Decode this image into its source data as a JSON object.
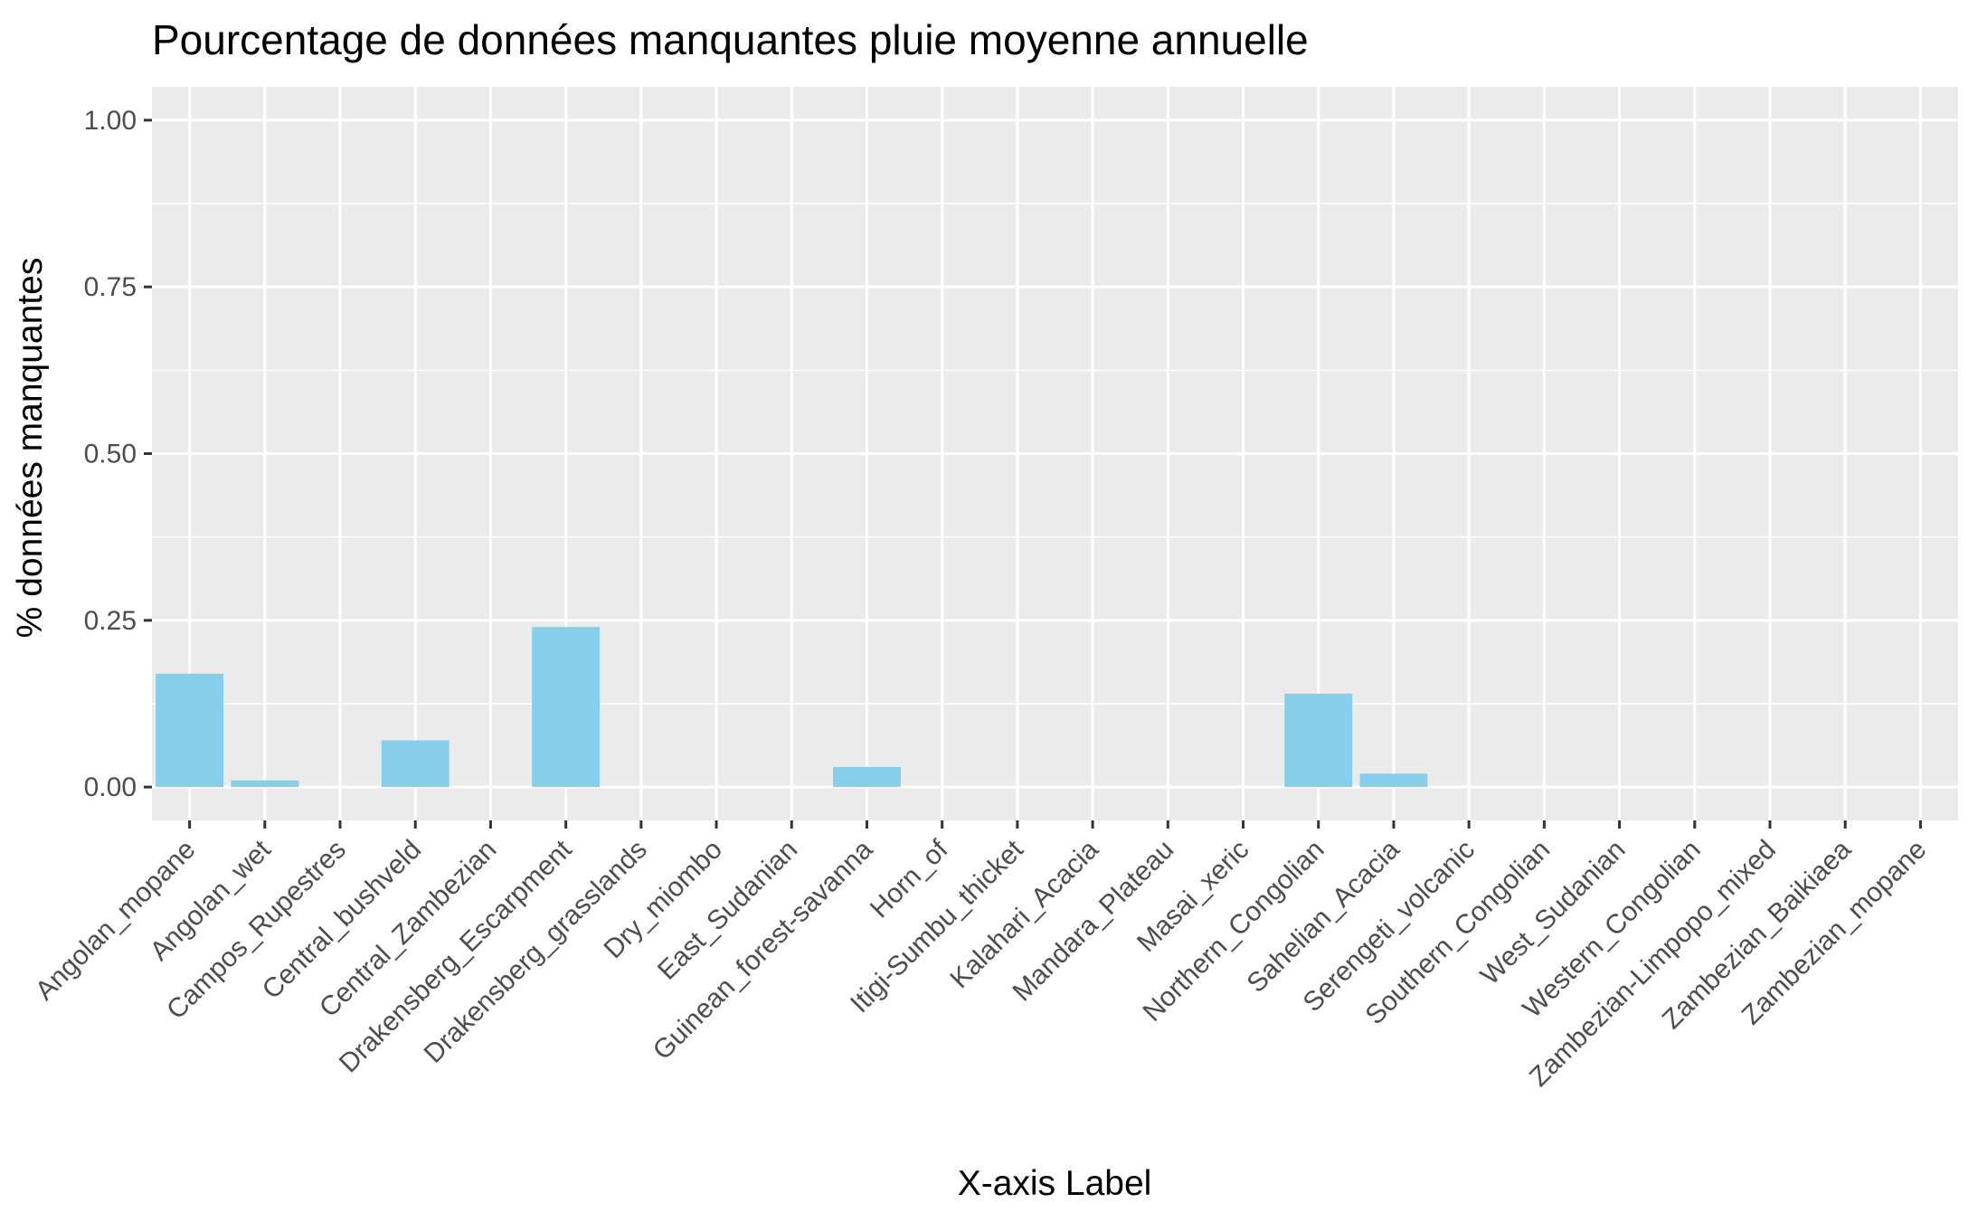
{
  "chart_data": {
    "type": "bar",
    "title": "Pourcentage de données manquantes pluie moyenne annuelle",
    "xlabel": "X-axis Label",
    "ylabel": "% données manquantes",
    "ylim": [
      -0.05,
      1.05
    ],
    "yticks": [
      "0.00",
      "0.25",
      "0.50",
      "0.75",
      "1.00"
    ],
    "ytick_values": [
      0,
      0.25,
      0.5,
      0.75,
      1.0
    ],
    "categories": [
      "Angolan_mopane",
      "Angolan_wet",
      "Campos_Rupestres",
      "Central_bushveld",
      "Central_Zambezian",
      "Drakensberg_Escarpment",
      "Drakensberg_grasslands",
      "Dry_miombo",
      "East_Sudanian",
      "Guinean_forest-savanna",
      "Horn_of",
      "Itigi-Sumbu_thicket",
      "Kalahari_Acacia",
      "Mandara_Plateau",
      "Masai_xeric",
      "Northern_Congolian",
      "Sahelian_Acacia",
      "Serengeti_volcanic",
      "Southern_Congolian",
      "West_Sudanian",
      "Western_Congolian",
      "Zambezian-Limpopo_mixed",
      "Zambezian_Baikiaea",
      "Zambezian_mopane"
    ],
    "values": [
      0.17,
      0.01,
      0,
      0.07,
      0,
      0.24,
      0,
      0,
      0,
      0.03,
      0,
      0,
      0,
      0,
      0,
      0.14,
      0.02,
      0,
      0,
      0,
      0,
      0,
      0,
      0
    ],
    "grid": true,
    "legend": "none",
    "colors": {
      "bar": "#87CEEB",
      "panel": "#EBEBEB",
      "grid": "#FFFFFF",
      "tick": "#333333",
      "tick_label": "#4D4D4D",
      "text": "#000000"
    }
  }
}
